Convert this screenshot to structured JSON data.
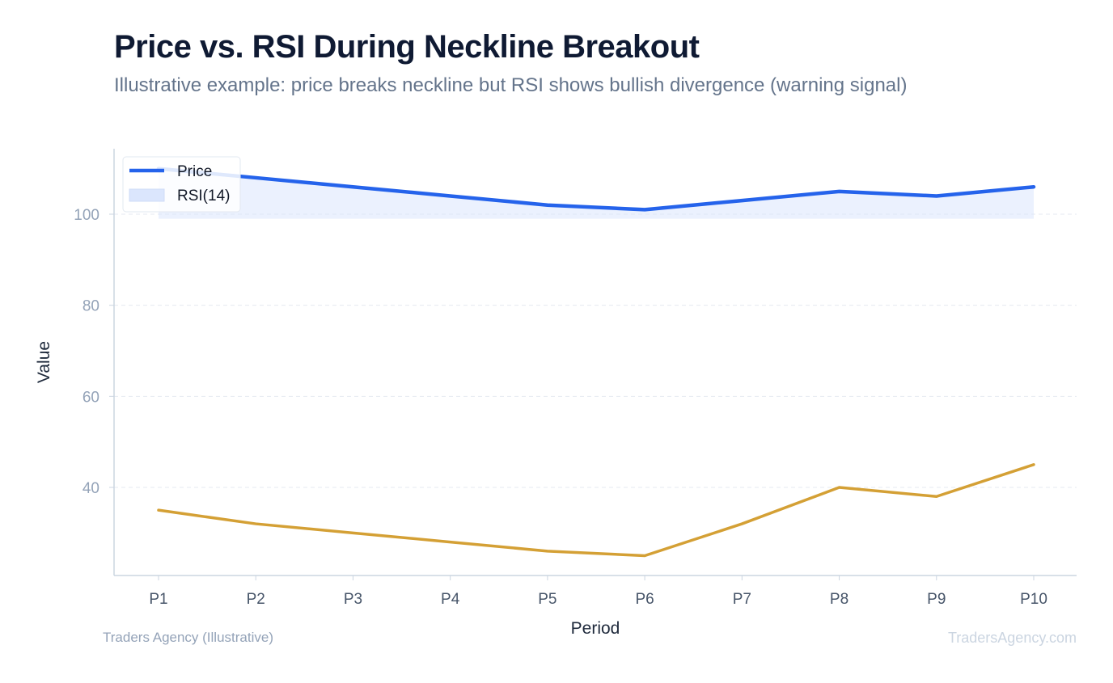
{
  "chart_data": {
    "type": "line",
    "title": "Price vs. RSI During Neckline Breakout",
    "subtitle": "Illustrative example: price breaks neckline but RSI shows bullish divergence (warning signal)",
    "xlabel": "Period",
    "ylabel": "Value",
    "categories": [
      "P1",
      "P2",
      "P3",
      "P4",
      "P5",
      "P6",
      "P7",
      "P8",
      "P9",
      "P10"
    ],
    "yticks": [
      40,
      60,
      80,
      100
    ],
    "ylim": [
      21,
      114
    ],
    "grid": "horizontal dashed",
    "legend_position": "top-left",
    "series": [
      {
        "name": "Price",
        "style": "line",
        "color": "#2563eb",
        "values": [
          110,
          108,
          106,
          104,
          102,
          101,
          103,
          105,
          104,
          106
        ],
        "band_color": "#dbe6fd",
        "band_base": 99
      },
      {
        "name": "RSI(14)",
        "style": "area",
        "color": "#d4a035",
        "legend_swatch_color": "#dbe6fd",
        "values": [
          35,
          32,
          30,
          28,
          26,
          25,
          32,
          40,
          38,
          45
        ]
      }
    ]
  },
  "footer": {
    "left": "Traders Agency (Illustrative)",
    "right": "TradersAgency.com"
  }
}
